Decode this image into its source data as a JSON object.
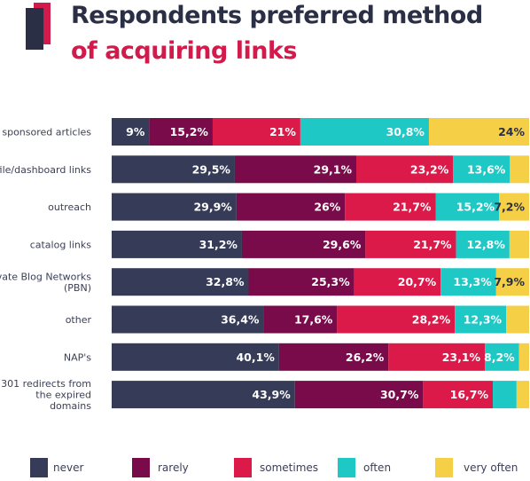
{
  "title_line1": "Respondents preferred method",
  "title_line2": "of acquiring links",
  "colors": {
    "title_dark": "#2a2f45",
    "title_accent": "#d21a4b"
  },
  "chart_data": {
    "type": "bar",
    "orientation": "horizontal",
    "stacked": true,
    "normalized_percent": true,
    "categories": [
      [
        "sponsored articles"
      ],
      [
        "file/dashboard links"
      ],
      [
        "outreach"
      ],
      [
        "catalog links"
      ],
      [
        "rivate Blog Networks",
        "(PBN)"
      ],
      [
        "other"
      ],
      [
        "NAP's"
      ],
      [
        "301 redirects from",
        "the expired",
        "domains"
      ]
    ],
    "series": [
      {
        "name": "never",
        "color": "#363b57",
        "values": [
          9.0,
          29.5,
          29.9,
          31.2,
          32.8,
          36.4,
          40.1,
          43.9
        ],
        "labels": [
          "9%",
          "29,5%",
          "29,9%",
          "31,2%",
          "32,8%",
          "36,4%",
          "40,1%",
          "43,9%"
        ]
      },
      {
        "name": "rarely",
        "color": "#7a0b4a",
        "values": [
          15.2,
          29.1,
          26.0,
          29.6,
          25.3,
          17.6,
          26.2,
          30.7
        ],
        "labels": [
          "15,2%",
          "29,1%",
          "26%",
          "29,6%",
          "25,3%",
          "17,6%",
          "26,2%",
          "30,7%"
        ]
      },
      {
        "name": "sometimes",
        "color": "#dc1a4a",
        "values": [
          21.0,
          23.2,
          21.7,
          21.7,
          20.7,
          28.2,
          23.1,
          16.7
        ],
        "labels": [
          "21%",
          "23,2%",
          "21,7%",
          "21,7%",
          "20,7%",
          "28,2%",
          "23,1%",
          "16,7%"
        ]
      },
      {
        "name": "often",
        "color": "#1ec9c5",
        "values": [
          30.8,
          13.6,
          15.2,
          12.8,
          13.3,
          12.3,
          8.2,
          5.7
        ],
        "labels": [
          "30,8%",
          "13,6%",
          "15,2%",
          "12,8%",
          "13,3%",
          "12,3%",
          "8,2%",
          ""
        ]
      },
      {
        "name": "very often",
        "color": "#f5cf45",
        "values": [
          24.0,
          4.6,
          7.2,
          4.7,
          7.9,
          5.5,
          2.4,
          3.0
        ],
        "labels": [
          "24%",
          "",
          "7,2%",
          "",
          "7,9%",
          "",
          "",
          ""
        ]
      }
    ],
    "xlim": [
      0,
      100
    ],
    "legend_position": "bottom"
  }
}
